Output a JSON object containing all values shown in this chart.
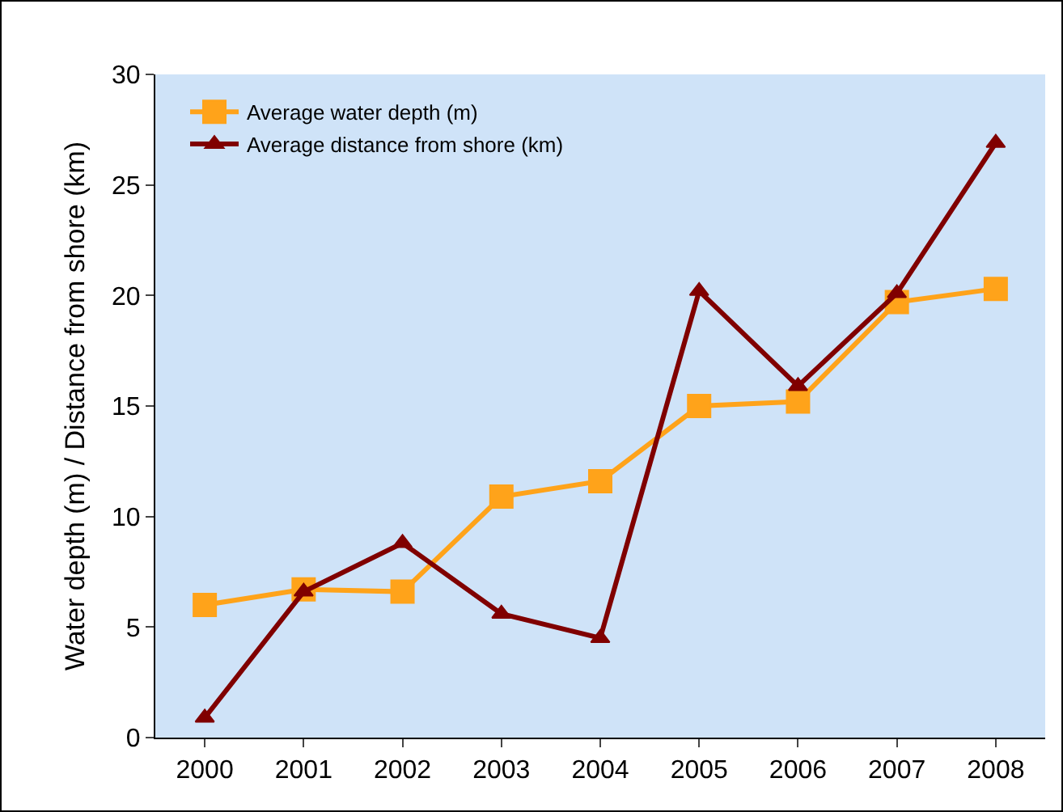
{
  "chart_data": {
    "type": "line",
    "ylabel": "Water depth (m) / Distance from shore (km)",
    "categories": [
      "2000",
      "2001",
      "2002",
      "2003",
      "2004",
      "2005",
      "2006",
      "2007",
      "2008"
    ],
    "series": [
      {
        "name": "Average water depth (m)",
        "color": "#ffa31a",
        "marker": "square",
        "values": [
          6.0,
          6.7,
          6.6,
          10.9,
          11.6,
          15.0,
          15.2,
          19.7,
          20.3
        ]
      },
      {
        "name": "Average distance from shore (km)",
        "color": "#800000",
        "marker": "triangle",
        "values": [
          0.9,
          6.6,
          8.8,
          5.6,
          4.5,
          20.2,
          15.9,
          20.1,
          26.9
        ]
      }
    ],
    "ylim": [
      0,
      30
    ],
    "yticks": [
      0,
      5,
      10,
      15,
      20,
      25,
      30
    ],
    "grid": false,
    "legend": "top left",
    "line_style": "solid"
  }
}
